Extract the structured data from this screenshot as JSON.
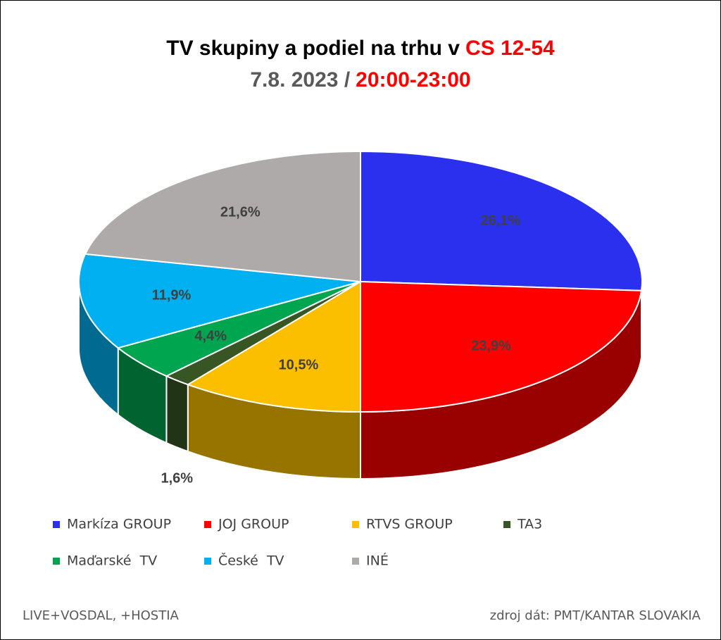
{
  "chart_data": {
    "type": "pie3d",
    "title": [
      "TV skupiny a podiel na trhu v",
      "CS 12-54"
    ],
    "subtitle": [
      "7.8. 2023 /",
      "20:00-23:00"
    ],
    "categories": [
      "Markíza GROUP",
      "JOJ GROUP",
      "RTVS GROUP",
      "TA3",
      "Maďarské  TV",
      "České  TV",
      "INÉ"
    ],
    "values": [
      26.1,
      23.9,
      10.5,
      1.6,
      4.4,
      11.9,
      21.6
    ],
    "value_labels": [
      "26,1%",
      "23,9%",
      "10,5%",
      "1,6%",
      "4,4%",
      "11,9%",
      "21,6%"
    ],
    "colors": [
      "#2b2fee",
      "#ff0000",
      "#fbbf00",
      "#375623",
      "#00a550",
      "#00b0f0",
      "#aeaaaa"
    ],
    "footer_left": "LIVE+VOSDAL, +HOSTIA",
    "footer_right": "zdroj dát: PMT/KANTAR SLOVAKIA"
  }
}
